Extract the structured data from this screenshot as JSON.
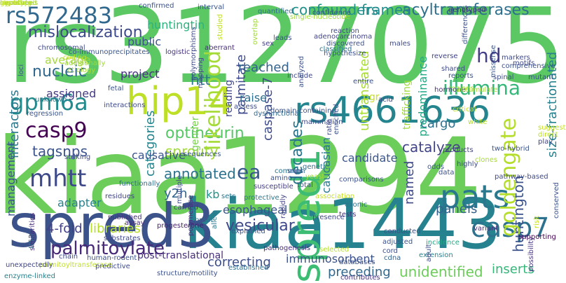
{
  "words": [
    {
      "text": "rs3127075",
      "color": "#5cc863"
    },
    {
      "text": "kiaa1294",
      "color": "#6ccd5a"
    },
    {
      "text": "kiaa1443",
      "color": "#26828e"
    },
    {
      "text": "spred3",
      "color": "#3b528b"
    },
    {
      "text": "hip14",
      "color": "#bddf26"
    },
    {
      "text": "rs4661636",
      "color": "#25858e"
    },
    {
      "text": "rs572483",
      "color": "#31688e"
    },
    {
      "text": "casp9",
      "color": "#440154"
    },
    {
      "text": "gpm6a",
      "color": "#238a8d"
    },
    {
      "text": "mhtt",
      "color": "#3e4989"
    },
    {
      "text": "spred1",
      "color": "#3dbc74"
    },
    {
      "text": "casp7",
      "color": "#2c728e"
    },
    {
      "text": "pats",
      "color": "#2a788e"
    },
    {
      "text": "palmitoylate",
      "color": "#482878"
    },
    {
      "text": "acyltransferases",
      "color": "#2d708e"
    },
    {
      "text": "optineurin",
      "color": "#56c667"
    },
    {
      "text": "mislocalization",
      "color": "#3e4a89"
    },
    {
      "text": "confounders",
      "color": "#21918c"
    },
    {
      "text": "frames",
      "color": "#238a8d"
    },
    {
      "text": "nucleic",
      "color": "#31688e"
    },
    {
      "text": "illumina",
      "color": "#35b779"
    },
    {
      "text": "hd",
      "color": "#433e85"
    },
    {
      "text": "likelihood",
      "color": "#a5db36"
    },
    {
      "text": "palmitate",
      "color": "#3e4a89"
    },
    {
      "text": "huntington",
      "color": "#3b528b"
    },
    {
      "text": "goldengate",
      "color": "#b5de2b"
    },
    {
      "text": "sprouty",
      "color": "#a2da37"
    },
    {
      "text": "annotated",
      "color": "#2c728e"
    },
    {
      "text": "y2h",
      "color": "#32648e"
    },
    {
      "text": "kb",
      "color": "#20928c"
    },
    {
      "text": "ea",
      "color": "#375a8c"
    },
    {
      "text": "catalyze",
      "color": "#414487"
    },
    {
      "text": "vesicular",
      "color": "#3f4889"
    },
    {
      "text": "cargo",
      "color": "#2e6f8e"
    },
    {
      "text": "panels",
      "color": "#33638d"
    },
    {
      "text": "inserts",
      "color": "#35b779"
    },
    {
      "text": "decades",
      "color": "#2a768e"
    },
    {
      "text": "tagsnps",
      "color": "#3b528b"
    },
    {
      "text": "categories",
      "color": "#24868e"
    },
    {
      "text": "caspase-7",
      "color": "#3e4c8a"
    },
    {
      "text": "htt",
      "color": "#2a788e"
    },
    {
      "text": "huntingtin",
      "color": "#2db27d"
    },
    {
      "text": "pgr",
      "color": "#c5e021"
    },
    {
      "text": "reached",
      "color": "#33638d"
    },
    {
      "text": "raise",
      "color": "#2e6e8e"
    },
    {
      "text": "untranslated",
      "color": "#a8db34"
    },
    {
      "text": "predominance",
      "color": "#22a884"
    },
    {
      "text": "size-fractionated",
      "color": "#26828e"
    },
    {
      "text": "interactors",
      "color": "#2a788e"
    },
    {
      "text": "management",
      "color": "#3a548c"
    },
    {
      "text": "correcting",
      "color": "#3d4e8a"
    },
    {
      "text": "immunosorbent",
      "color": "#3b528b"
    },
    {
      "text": "unidentified",
      "color": "#6ccd5a"
    },
    {
      "text": "preceding",
      "color": "#31688e"
    },
    {
      "text": "libraries",
      "color": "#b5de2b"
    },
    {
      "text": "4-fold",
      "color": "#424086"
    },
    {
      "text": "adapter",
      "color": "#26828e"
    },
    {
      "text": "causative",
      "color": "#3a548c"
    },
    {
      "text": "candidate",
      "color": "#39568c"
    },
    {
      "text": "named",
      "color": "#3e4989"
    },
    {
      "text": "caucasian",
      "color": "#2a788e"
    },
    {
      "text": "esophageal",
      "color": "#3a548c"
    },
    {
      "text": "public",
      "color": "#3b528b"
    },
    {
      "text": "project",
      "color": "#46337f"
    },
    {
      "text": "assigned",
      "color": "#443a83"
    },
    {
      "text": "average",
      "color": "#a5db36"
    },
    {
      "text": "reading",
      "color": "#404688"
    },
    {
      "text": "trafficking",
      "color": "#a0da39"
    },
    {
      "text": "gender",
      "color": "#7ad151"
    },
    {
      "text": "usa",
      "color": "#2a788e"
    },
    {
      "text": "post-translational",
      "color": "#472d7b"
    },
    {
      "text": "palmitoyltransferase",
      "color": "#bddf26"
    },
    {
      "text": "structure/motility",
      "color": "#3b528b"
    },
    {
      "text": "enzyme-linked",
      "color": "#26828e"
    },
    {
      "text": "unexpectedly",
      "color": "#414487"
    },
    {
      "text": "predictive",
      "color": "#3e4a89"
    },
    {
      "text": "chain",
      "color": "#3e4989"
    },
    {
      "text": "allele",
      "color": "#2a788e"
    },
    {
      "text": "established",
      "color": "#2e6e8e"
    },
    {
      "text": "explained",
      "color": "#39568c"
    },
    {
      "text": "human-rodent",
      "color": "#3b528b"
    },
    {
      "text": "substrates",
      "color": "#3e4989"
    },
    {
      "text": "assay",
      "color": "#472c7a"
    },
    {
      "text": "published",
      "color": "#46327e"
    },
    {
      "text": "carried",
      "color": "#443983"
    },
    {
      "text": "progesterone",
      "color": "#482173"
    },
    {
      "text": "brain",
      "color": "#31688e"
    },
    {
      "text": "sets",
      "color": "#2c738e"
    },
    {
      "text": "protective",
      "color": "#2a788e"
    },
    {
      "text": "susceptible",
      "color": "#433e85"
    },
    {
      "text": "presence",
      "color": "#3e4a89"
    },
    {
      "text": "tests",
      "color": "#46327e"
    },
    {
      "text": "conducted",
      "color": "#3b528b"
    },
    {
      "text": "adjusted",
      "color": "#3a548c"
    },
    {
      "text": "cord",
      "color": "#3d4e8a"
    },
    {
      "text": "cdna",
      "color": "#33638d"
    },
    {
      "text": "selected",
      "color": "#b5de2b"
    },
    {
      "text": "databases",
      "color": "#3b528b"
    },
    {
      "text": "contributes",
      "color": "#46327e"
    },
    {
      "text": "extension",
      "color": "#26828e"
    },
    {
      "text": "incidence",
      "color": "#22a884"
    },
    {
      "text": "variant",
      "color": "#472d7b"
    },
    {
      "text": "supporting",
      "color": "#440154"
    },
    {
      "text": "possibility",
      "color": "#46337f"
    },
    {
      "text": "conserved",
      "color": "#3b528b"
    },
    {
      "text": "pathway-based",
      "color": "#3e4989"
    },
    {
      "text": "clones",
      "color": "#a8db34"
    },
    {
      "text": "two-hybrid",
      "color": "#3a548c"
    },
    {
      "text": "highly",
      "color": "#3d4e8a"
    },
    {
      "text": "products",
      "color": "#414487"
    },
    {
      "text": "exonic",
      "color": "#2c738e"
    },
    {
      "text": "comparisons",
      "color": "#3b528b"
    },
    {
      "text": "similarities",
      "color": "#472c7a"
    },
    {
      "text": "striking",
      "color": "#3e4989"
    },
    {
      "text": "functionally",
      "color": "#2e6e8e"
    },
    {
      "text": "residues",
      "color": "#414487"
    },
    {
      "text": "sequences",
      "color": "#39568c"
    },
    {
      "text": "common",
      "color": "#2c728e"
    },
    {
      "text": "amino",
      "color": "#3b528b"
    },
    {
      "text": "polymerase",
      "color": "#46327e"
    },
    {
      "text": "multiple",
      "color": "#3e4989"
    },
    {
      "text": "rapidly",
      "color": "#414487"
    },
    {
      "text": "snps",
      "color": "#3b528b"
    },
    {
      "text": "regression",
      "color": "#3a548c"
    },
    {
      "text": "unknown",
      "color": "#2a788e"
    },
    {
      "text": "additionally",
      "color": "#a0da39"
    },
    {
      "text": "coding",
      "color": "#c5e021"
    },
    {
      "text": "co-immunoprecipitates",
      "color": "#39568c"
    },
    {
      "text": "chromosomal",
      "color": "#3e4989"
    },
    {
      "text": "confirmed",
      "color": "#3b528b"
    },
    {
      "text": "interval",
      "color": "#3a548c"
    },
    {
      "text": "quantified",
      "color": "#2e6e8e"
    },
    {
      "text": "confidence",
      "color": "#3d4e8a"
    },
    {
      "text": "differences",
      "color": "#3b528b"
    },
    {
      "text": "genotyped",
      "color": "#472d7b"
    },
    {
      "text": "markers",
      "color": "#3e4989"
    },
    {
      "text": "comprehensive",
      "color": "#3b528b"
    },
    {
      "text": "spinal",
      "color": "#3d4e8a"
    },
    {
      "text": "adenocarcinoma",
      "color": "#414487"
    },
    {
      "text": "discovered",
      "color": "#3b528b"
    },
    {
      "text": "reaction",
      "color": "#3e4989"
    },
    {
      "text": "classified",
      "color": "#2c738e"
    },
    {
      "text": "hypothesize",
      "color": "#3b528b"
    },
    {
      "text": "reverse",
      "color": "#414487"
    },
    {
      "text": "missense",
      "color": "#39568c"
    },
    {
      "text": "shared",
      "color": "#3e4989"
    },
    {
      "text": "reports",
      "color": "#3b528b"
    },
    {
      "text": "regions",
      "color": "#a8db34"
    },
    {
      "text": "hormone",
      "color": "#46327e"
    },
    {
      "text": "entire",
      "color": "#3b528b"
    },
    {
      "text": "include",
      "color": "#3e4a89"
    },
    {
      "text": "analyzed",
      "color": "#3b528b"
    },
    {
      "text": "sex",
      "color": "#433e85"
    },
    {
      "text": "leads",
      "color": "#3a548c"
    },
    {
      "text": "mapping",
      "color": "#414487"
    },
    {
      "text": "polymorphisms",
      "color": "#3e4989"
    },
    {
      "text": "aberrant",
      "color": "#472d7b"
    },
    {
      "text": "assess",
      "color": "#3d4e8a"
    },
    {
      "text": "domain-containing",
      "color": "#3b528b"
    },
    {
      "text": "dysfunctional",
      "color": "#31688e"
    },
    {
      "text": "mammalian",
      "color": "#3e4989"
    },
    {
      "text": "ratio",
      "color": "#3e4989"
    },
    {
      "text": "enriched",
      "color": "#3a548c"
    },
    {
      "text": "logistic",
      "color": "#46337f"
    },
    {
      "text": "fetal",
      "color": "#3b528b"
    },
    {
      "text": "interactions",
      "color": "#3e4989"
    },
    {
      "text": "loci",
      "color": "#3b528b"
    },
    {
      "text": "males",
      "color": "#3e4a89"
    },
    {
      "text": "play",
      "color": "#414487"
    },
    {
      "text": "mutant",
      "color": "#3b528b"
    },
    {
      "text": "motifs",
      "color": "#3e4989"
    },
    {
      "text": "genetic",
      "color": "#2e6e8e"
    },
    {
      "text": "odds",
      "color": "#39568c"
    },
    {
      "text": "data",
      "color": "#3b528b"
    },
    {
      "text": "adult",
      "color": "#3d4e8a"
    },
    {
      "text": "acid",
      "color": "#3e4a89"
    },
    {
      "text": "total",
      "color": "#3b528b"
    },
    {
      "text": "association",
      "color": "#c5e021"
    },
    {
      "text": "yeast",
      "color": "#a0da39"
    },
    {
      "text": "risk",
      "color": "#c5e021"
    },
    {
      "text": "pathogenesis",
      "color": "#472d7b"
    },
    {
      "text": "white",
      "color": "#b5de2b"
    },
    {
      "text": "overlap",
      "color": "#a0da39"
    },
    {
      "text": "etiology",
      "color": "#a8db34"
    },
    {
      "text": "critical",
      "color": "#c5e021"
    },
    {
      "text": "studied",
      "color": "#bddf26"
    },
    {
      "text": "accumulate",
      "color": "#a5db36"
    },
    {
      "text": "single-nucleotide",
      "color": "#a0da39"
    },
    {
      "text": "suggests",
      "color": "#c5e021"
    },
    {
      "text": "direct",
      "color": "#bddf26"
    },
    {
      "text": "implicated",
      "color": "#b5de2b"
    },
    {
      "text": "signaling",
      "color": "#c5e021"
    },
    {
      "text": "genotype",
      "color": "#bddf26"
    },
    {
      "text": "hypothesis",
      "color": "#a8db34"
    },
    {
      "text": "cases",
      "color": "#c5e021"
    },
    {
      "text": "vitro",
      "color": "#b5de2b"
    }
  ]
}
